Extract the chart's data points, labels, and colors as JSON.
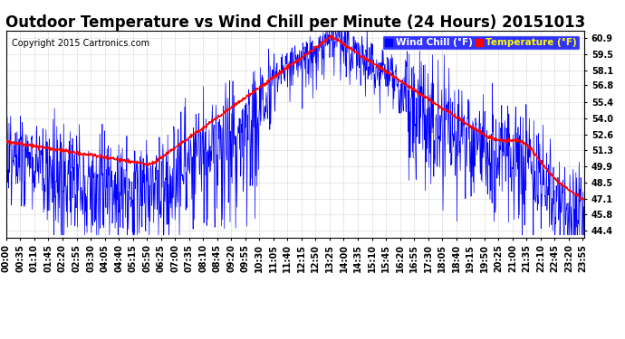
{
  "title": "Outdoor Temperature vs Wind Chill per Minute (24 Hours) 20151013",
  "copyright": "Copyright 2015 Cartronics.com",
  "legend_labels": [
    "Wind Chill (°F)",
    "Temperature (°F)"
  ],
  "wind_chill_color": "blue",
  "temperature_color": "red",
  "background_color": "#ffffff",
  "plot_bg_color": "#ffffff",
  "grid_color": "#bbbbbb",
  "yticks": [
    44.4,
    45.8,
    47.1,
    48.5,
    49.9,
    51.3,
    52.6,
    54.0,
    55.4,
    56.8,
    58.1,
    59.5,
    60.9
  ],
  "ylim": [
    43.8,
    61.5
  ],
  "num_minutes": 1440,
  "title_fontsize": 12,
  "copyright_fontsize": 7,
  "tick_fontsize": 7,
  "legend_fontsize": 7.5,
  "seed": 1234
}
